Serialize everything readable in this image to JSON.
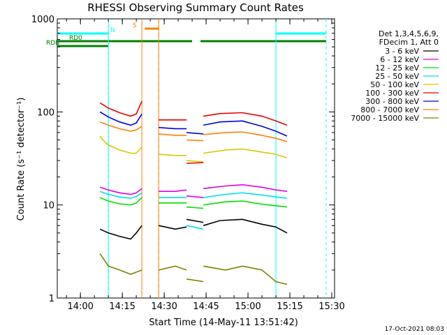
{
  "chart_data": {
    "type": "line",
    "title": "RHESSI Observing Summary Count Rates",
    "xlabel": "Start Time (14-May-11 13:51:42)",
    "ylabel": "Count Rate (s⁻¹ detector⁻¹)",
    "yscale": "log",
    "ylim": [
      1,
      1000
    ],
    "xlim": [
      "13:51:42",
      "15:31:00"
    ],
    "x_ticks": [
      "14:00",
      "14:15",
      "14:30",
      "14:45",
      "15:00",
      "15:15",
      "15:30"
    ],
    "y_ticks": [
      "1",
      "10",
      "100",
      "1000"
    ],
    "grid": false,
    "legend_position": "right",
    "legend_header": [
      "Det 1,3,4,5,6,9,",
      "FDecim 1, Att 0"
    ],
    "series": [
      {
        "name": "3 - 6 keV",
        "color": "#000000",
        "segments": [
          [
            [
              "14:07",
              5.5
            ],
            [
              "14:10",
              5.0
            ],
            [
              "14:14",
              4.6
            ],
            [
              "14:18",
              4.3
            ],
            [
              "14:20",
              5.0
            ],
            [
              "14:22",
              6.0
            ]
          ],
          [
            [
              "14:28",
              6.0
            ],
            [
              "14:34",
              5.5
            ],
            [
              "14:38",
              5.8
            ]
          ],
          [
            [
              "14:38",
              7.0
            ],
            [
              "14:44",
              6.5
            ]
          ],
          [
            [
              "14:44",
              6.0
            ],
            [
              "14:50",
              6.8
            ],
            [
              "14:58",
              7.0
            ],
            [
              "15:05",
              6.2
            ],
            [
              "15:10",
              5.8
            ],
            [
              "15:14",
              5.0
            ]
          ]
        ]
      },
      {
        "name": "6 - 12 keV",
        "color": "#e000e0",
        "segments": [
          [
            [
              "14:07",
              15.5
            ],
            [
              "14:10",
              14.5
            ],
            [
              "14:14",
              13.5
            ],
            [
              "14:18",
              13.0
            ],
            [
              "14:20",
              13.5
            ],
            [
              "14:22",
              15.0
            ]
          ],
          [
            [
              "14:28",
              14.0
            ],
            [
              "14:34",
              14.0
            ],
            [
              "14:38",
              14.5
            ]
          ],
          [
            [
              "14:38",
              12.5
            ],
            [
              "14:44",
              12.0
            ]
          ],
          [
            [
              "14:44",
              15.0
            ],
            [
              "14:52",
              16.0
            ],
            [
              "14:58",
              16.5
            ],
            [
              "15:05",
              15.5
            ],
            [
              "15:10",
              14.5
            ],
            [
              "15:14",
              14.0
            ]
          ]
        ]
      },
      {
        "name": "12 - 25 keV",
        "color": "#00e000",
        "segments": [
          [
            [
              "14:07",
              12.0
            ],
            [
              "14:10",
              11.0
            ],
            [
              "14:14",
              10.3
            ],
            [
              "14:18",
              10.0
            ],
            [
              "14:20",
              10.5
            ],
            [
              "14:22",
              12.0
            ]
          ],
          [
            [
              "14:28",
              10.5
            ],
            [
              "14:34",
              10.5
            ],
            [
              "14:38",
              10.5
            ]
          ],
          [
            [
              "14:38",
              9.5
            ],
            [
              "14:44",
              9.2
            ]
          ],
          [
            [
              "14:44",
              10.0
            ],
            [
              "14:52",
              10.8
            ],
            [
              "14:58",
              11.0
            ],
            [
              "15:05",
              10.2
            ],
            [
              "15:10",
              9.8
            ],
            [
              "15:14",
              9.5
            ]
          ]
        ]
      },
      {
        "name": "25 - 50 keV",
        "color": "#00e0e0",
        "segments": [
          [
            [
              "14:07",
              14.0
            ],
            [
              "14:10",
              13.0
            ],
            [
              "14:14",
              12.2
            ],
            [
              "14:18",
              11.8
            ],
            [
              "14:20",
              12.3
            ],
            [
              "14:22",
              13.5
            ]
          ],
          [
            [
              "14:28",
              12.0
            ],
            [
              "14:34",
              12.0
            ],
            [
              "14:38",
              12.0
            ]
          ],
          [
            [
              "14:38",
              6.0
            ],
            [
              "14:44",
              5.5
            ]
          ],
          [
            [
              "14:44",
              12.0
            ],
            [
              "14:52",
              13.0
            ],
            [
              "14:58",
              13.5
            ],
            [
              "15:05",
              12.8
            ],
            [
              "15:10",
              12.2
            ],
            [
              "15:14",
              11.8
            ]
          ]
        ]
      },
      {
        "name": "50 - 100 keV",
        "color": "#d8c800",
        "segments": [
          [
            [
              "14:07",
              55.0
            ],
            [
              "14:08",
              50.0
            ],
            [
              "14:10",
              44.0
            ],
            [
              "14:14",
              39.0
            ],
            [
              "14:18",
              36.0
            ],
            [
              "14:20",
              36.0
            ],
            [
              "14:22",
              42.0
            ]
          ],
          [
            [
              "14:28",
              35.0
            ],
            [
              "14:34",
              34.0
            ],
            [
              "14:38",
              34.0
            ]
          ],
          [
            [
              "14:38",
              30.0
            ],
            [
              "14:44",
              29.0
            ]
          ],
          [
            [
              "14:44",
              36.0
            ],
            [
              "14:52",
              39.0
            ],
            [
              "14:58",
              40.0
            ],
            [
              "15:05",
              37.0
            ],
            [
              "15:10",
              35.0
            ],
            [
              "15:14",
              32.0
            ]
          ]
        ]
      },
      {
        "name": "100 - 300 keV",
        "color": "#e80000",
        "segments": [
          [
            [
              "14:07",
              125.0
            ],
            [
              "14:10",
              110.0
            ],
            [
              "14:14",
              98.0
            ],
            [
              "14:18",
              90.0
            ],
            [
              "14:20",
              95.0
            ],
            [
              "14:22",
              130.0
            ]
          ],
          [
            [
              "14:28",
              82.0
            ],
            [
              "14:34",
              82.0
            ],
            [
              "14:38",
              82.0
            ]
          ],
          [
            [
              "14:38",
              28.0
            ],
            [
              "14:44",
              28.5
            ]
          ],
          [
            [
              "14:44",
              90.0
            ],
            [
              "14:50",
              96.0
            ],
            [
              "14:58",
              98.0
            ],
            [
              "15:05",
              90.0
            ],
            [
              "15:10",
              80.0
            ],
            [
              "15:14",
              72.0
            ]
          ]
        ]
      },
      {
        "name": "300 - 800 keV",
        "color": "#0000e0",
        "segments": [
          [
            [
              "14:07",
              100.0
            ],
            [
              "14:10",
              88.0
            ],
            [
              "14:14",
              78.0
            ],
            [
              "14:18",
              72.0
            ],
            [
              "14:20",
              76.0
            ],
            [
              "14:22",
              95.0
            ]
          ],
          [
            [
              "14:28",
              68.0
            ],
            [
              "14:34",
              66.0
            ],
            [
              "14:38",
              66.0
            ]
          ],
          [
            [
              "14:38",
              60.0
            ],
            [
              "14:44",
              58.0
            ]
          ],
          [
            [
              "14:44",
              72.0
            ],
            [
              "14:50",
              78.0
            ],
            [
              "14:58",
              80.0
            ],
            [
              "15:05",
              70.0
            ],
            [
              "15:10",
              62.0
            ],
            [
              "15:14",
              55.0
            ]
          ]
        ]
      },
      {
        "name": "800 - 7000 keV",
        "color": "#ff8000",
        "segments": [
          [
            [
              "14:07",
              78.0
            ],
            [
              "14:10",
              72.0
            ],
            [
              "14:14",
              66.0
            ],
            [
              "14:18",
              62.0
            ],
            [
              "14:20",
              64.0
            ],
            [
              "14:22",
              70.0
            ]
          ],
          [
            [
              "14:28",
              58.0
            ],
            [
              "14:34",
              56.0
            ],
            [
              "14:38",
              56.0
            ]
          ],
          [
            [
              "14:38",
              50.0
            ],
            [
              "14:44",
              49.0
            ]
          ],
          [
            [
              "14:44",
              57.0
            ],
            [
              "14:52",
              60.0
            ],
            [
              "14:58",
              61.0
            ],
            [
              "15:05",
              56.0
            ],
            [
              "15:10",
              52.0
            ],
            [
              "15:14",
              48.0
            ]
          ]
        ]
      },
      {
        "name": "7000 - 15000 keV",
        "color": "#808000",
        "segments": [
          [
            [
              "14:07",
              3.0
            ],
            [
              "14:10",
              2.2
            ],
            [
              "14:14",
              2.0
            ],
            [
              "14:18",
              1.8
            ],
            [
              "14:22",
              2.0
            ]
          ],
          [
            [
              "14:28",
              2.0
            ],
            [
              "14:34",
              2.2
            ],
            [
              "14:38",
              2.0
            ]
          ],
          [
            [
              "14:38",
              1.6
            ],
            [
              "14:44",
              1.5
            ]
          ],
          [
            [
              "14:44",
              2.2
            ],
            [
              "14:52",
              2.0
            ],
            [
              "14:58",
              2.2
            ],
            [
              "15:05",
              2.0
            ],
            [
              "15:10",
              1.5
            ],
            [
              "15:14",
              1.4
            ]
          ]
        ]
      }
    ],
    "flags": [
      {
        "label": "N",
        "color": "#00ffff",
        "intervals": [
          [
            "13:51:42",
            "14:10"
          ],
          [
            "15:10",
            "15:28"
          ]
        ]
      },
      {
        "label": "S",
        "color": "#ff8000",
        "intervals": [
          [
            "14:23",
            "14:28"
          ]
        ]
      },
      {
        "label": "RD0",
        "color": "#008000",
        "intervals": [
          [
            "13:51:42",
            "14:11"
          ],
          [
            "14:11",
            "14:40"
          ],
          [
            "14:43",
            "15:28"
          ]
        ]
      },
      {
        "label": "RDB",
        "color": "#008000",
        "intervals": [
          [
            "13:51:42",
            "14:10"
          ]
        ]
      }
    ],
    "vertical_lines": {
      "solid_cyan": [
        "14:10",
        "15:10"
      ],
      "dashed_cyan": [
        "14:10",
        "15:28"
      ],
      "solid_orange": [
        "14:22",
        "14:28"
      ],
      "dashed_orange": [
        "14:28"
      ]
    },
    "footer_timestamp": "17-Oct-2021 08:03"
  }
}
